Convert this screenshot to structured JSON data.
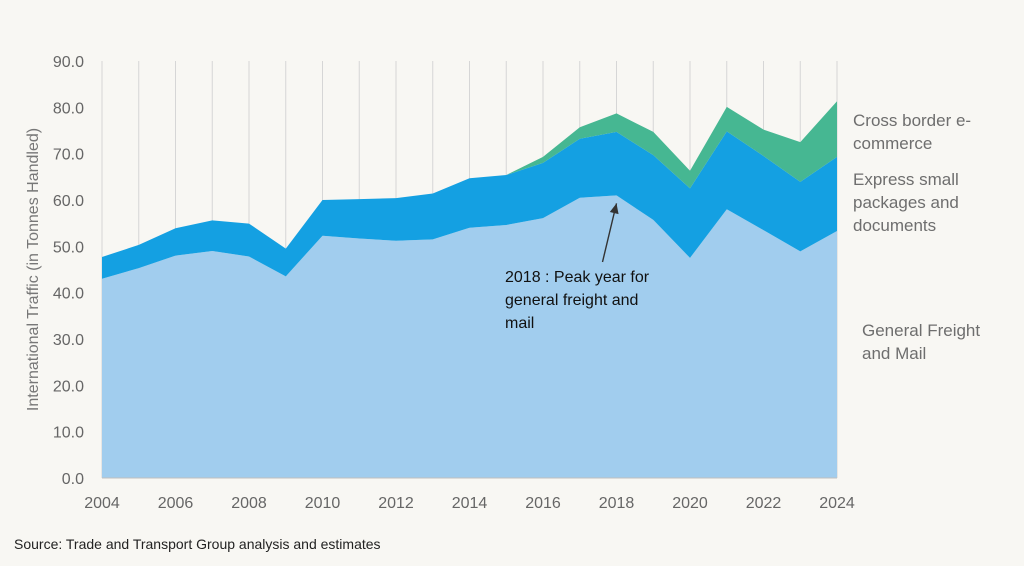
{
  "chart_data": {
    "type": "area",
    "stacked": true,
    "x": [
      2004,
      2005,
      2006,
      2007,
      2008,
      2009,
      2010,
      2011,
      2012,
      2013,
      2014,
      2015,
      2016,
      2017,
      2018,
      2019,
      2020,
      2021,
      2022,
      2023,
      2024
    ],
    "series": [
      {
        "name": "General Freight and Mail",
        "color": "#a1cdee",
        "values": [
          43.0,
          45.3,
          48.0,
          49.0,
          47.8,
          43.5,
          52.3,
          51.7,
          51.2,
          51.5,
          54.0,
          54.6,
          56.1,
          60.5,
          61.0,
          55.7,
          47.5,
          58.0,
          53.5,
          48.9,
          53.3
        ]
      },
      {
        "name": "Express small packages and documents",
        "color": "#14a0e2",
        "values": [
          4.7,
          5.0,
          5.9,
          6.6,
          7.1,
          6.0,
          7.7,
          8.5,
          9.2,
          9.9,
          10.7,
          10.8,
          11.9,
          12.7,
          13.7,
          14.0,
          15.0,
          16.8,
          16.0,
          15.0,
          16.0
        ]
      },
      {
        "name": "Cross border e-commerce",
        "color": "#46b792",
        "values": [
          0,
          0,
          0,
          0,
          0,
          0,
          0,
          0,
          0,
          0,
          0,
          0,
          1.3,
          2.5,
          4.0,
          5.0,
          3.8,
          5.3,
          5.7,
          8.6,
          12.0
        ]
      }
    ],
    "ylabel": "International Traffic (in Tonnes Handled)",
    "ylim": [
      0,
      90
    ],
    "yticks": [
      0,
      10,
      20,
      30,
      40,
      50,
      60,
      70,
      80,
      90
    ],
    "xticks": [
      2004,
      2006,
      2008,
      2010,
      2012,
      2014,
      2016,
      2018,
      2020,
      2022,
      2024
    ],
    "grid": "vertical",
    "annotation": {
      "x": 2018,
      "y": 61.0,
      "lines": [
        "2018 : Peak year for",
        "general freight and",
        "mail"
      ]
    },
    "legend": [
      {
        "lines": [
          "Cross border e-",
          "commerce"
        ]
      },
      {
        "lines": [
          "Express small",
          "packages and",
          "documents"
        ]
      },
      {
        "lines": [
          "General Freight",
          "and Mail"
        ]
      }
    ],
    "source": "Source: Trade and Transport Group analysis and estimates"
  }
}
